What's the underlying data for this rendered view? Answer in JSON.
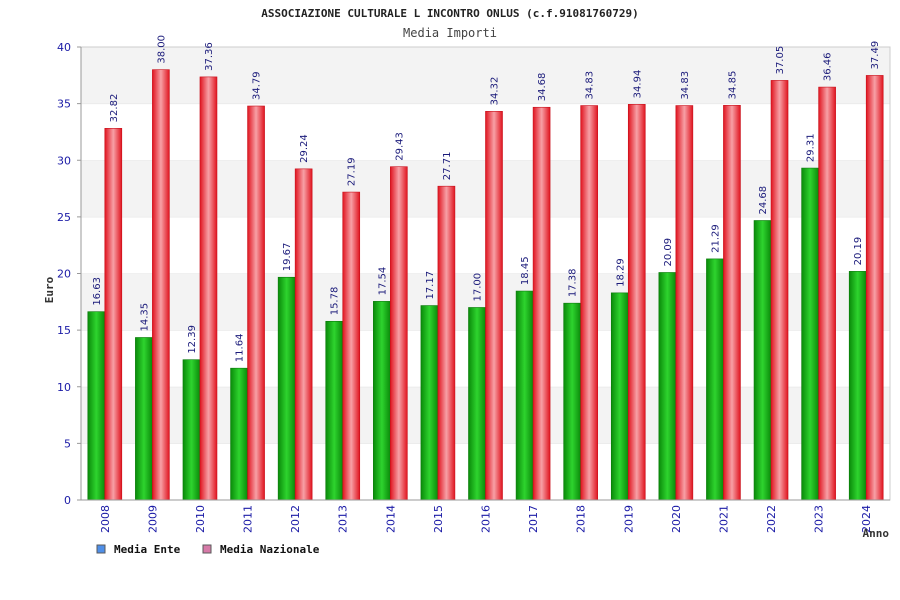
{
  "chart_data": {
    "type": "bar",
    "title": "ASSOCIAZIONE CULTURALE L INCONTRO ONLUS (c.f.91081760729)",
    "subtitle": "Media Importi",
    "xlabel": "Anno",
    "ylabel": "Euro",
    "ylim": [
      0,
      40
    ],
    "yticks": [
      0,
      5,
      10,
      15,
      20,
      25,
      30,
      35,
      40
    ],
    "grid": true,
    "legend_position": "bottom-left",
    "categories": [
      "2008",
      "2009",
      "2010",
      "2011",
      "2012",
      "2013",
      "2014",
      "2015",
      "2016",
      "2017",
      "2018",
      "2019",
      "2020",
      "2021",
      "2022",
      "2023",
      "2024"
    ],
    "series": [
      {
        "name": "Media Ente",
        "legend_color": "#4f8fe8",
        "color": "#12a812",
        "values": [
          16.63,
          14.35,
          12.39,
          11.64,
          19.67,
          15.78,
          17.54,
          17.17,
          17.0,
          18.45,
          17.38,
          18.29,
          20.09,
          21.29,
          24.68,
          29.31,
          20.19
        ],
        "labels": [
          "16.63",
          "14.35",
          "12.39",
          "11.64",
          "19.67",
          "15.78",
          "17.54",
          "17.17",
          "17.00",
          "18.45",
          "17.38",
          "18.29",
          "20.09",
          "21.29",
          "24.68",
          "29.31",
          "20.19"
        ]
      },
      {
        "name": "Media Nazionale",
        "legend_color": "#d77aa8",
        "color": "#e5202e",
        "values": [
          32.82,
          38.0,
          37.36,
          34.79,
          29.24,
          27.19,
          29.43,
          27.71,
          34.32,
          34.68,
          34.83,
          34.94,
          34.83,
          34.85,
          37.05,
          36.46,
          37.49
        ],
        "labels": [
          "32.82",
          "38.00",
          "37.36",
          "34.79",
          "29.24",
          "27.19",
          "29.43",
          "27.71",
          "34.32",
          "34.68",
          "34.83",
          "34.94",
          "34.83",
          "34.85",
          "37.05",
          "36.46",
          "37.49"
        ]
      }
    ]
  }
}
